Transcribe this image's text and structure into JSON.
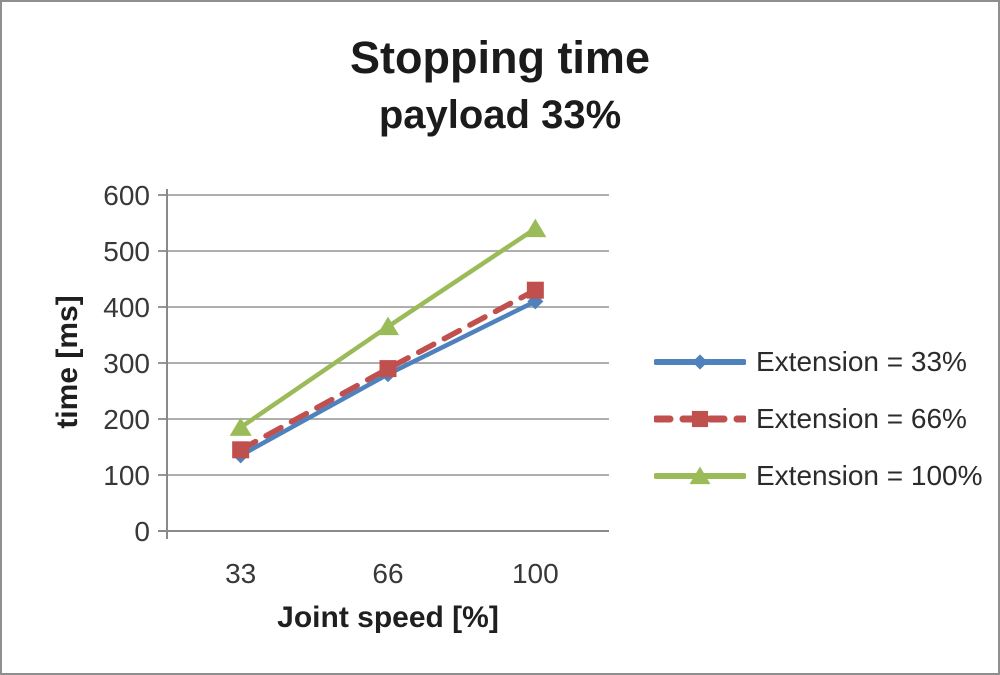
{
  "chart_data": {
    "type": "line",
    "title": "Stopping time",
    "subtitle": "payload 33%",
    "xlabel": "Joint speed [%]",
    "ylabel": "time [ms]",
    "categories": [
      "33",
      "66",
      "100"
    ],
    "ylim": [
      0,
      600
    ],
    "yticks": [
      0,
      100,
      200,
      300,
      400,
      500,
      600
    ],
    "grid": true,
    "legend_position": "right",
    "series": [
      {
        "name": "Extension = 33%",
        "values": [
          135,
          280,
          410
        ],
        "color": "#4F81BD",
        "marker": "diamond",
        "dash": "solid"
      },
      {
        "name": "Extension = 66%",
        "values": [
          145,
          290,
          430
        ],
        "color": "#C0504D",
        "marker": "square",
        "dash": "dashed"
      },
      {
        "name": "Extension = 100%",
        "values": [
          185,
          365,
          540
        ],
        "color": "#9BBB59",
        "marker": "triangle",
        "dash": "solid"
      }
    ],
    "gridline_color": "#a3a3a3",
    "axis_color": "#8a8a8a"
  }
}
